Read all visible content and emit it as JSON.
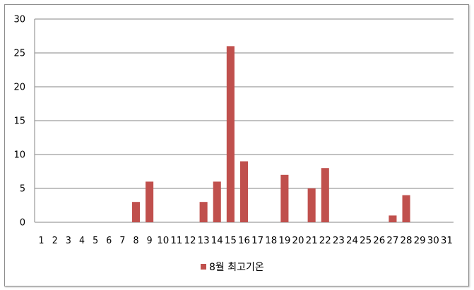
{
  "chart_data": {
    "type": "bar",
    "categories": [
      "1",
      "2",
      "3",
      "4",
      "5",
      "6",
      "7",
      "8",
      "9",
      "10",
      "11",
      "12",
      "13",
      "14",
      "15",
      "16",
      "17",
      "18",
      "19",
      "20",
      "21",
      "22",
      "23",
      "24",
      "25",
      "26",
      "27",
      "28",
      "29",
      "30",
      "31"
    ],
    "series": [
      {
        "name": "8월 최고기온",
        "values": [
          0,
          0,
          0,
          0,
          0,
          0,
          0,
          3,
          6,
          0,
          0,
          0,
          3,
          6,
          26,
          9,
          0,
          0,
          7,
          0,
          5,
          8,
          0,
          0,
          0,
          0,
          1,
          4,
          0,
          0,
          0
        ]
      }
    ],
    "ylim": [
      0,
      30
    ],
    "yticks": [
      "0",
      "5",
      "10",
      "15",
      "20",
      "25",
      "30"
    ],
    "grid": true,
    "legend": "bottom",
    "colors": {
      "bar": "#c0504d",
      "grid": "#868686",
      "axis": "#868686"
    }
  }
}
